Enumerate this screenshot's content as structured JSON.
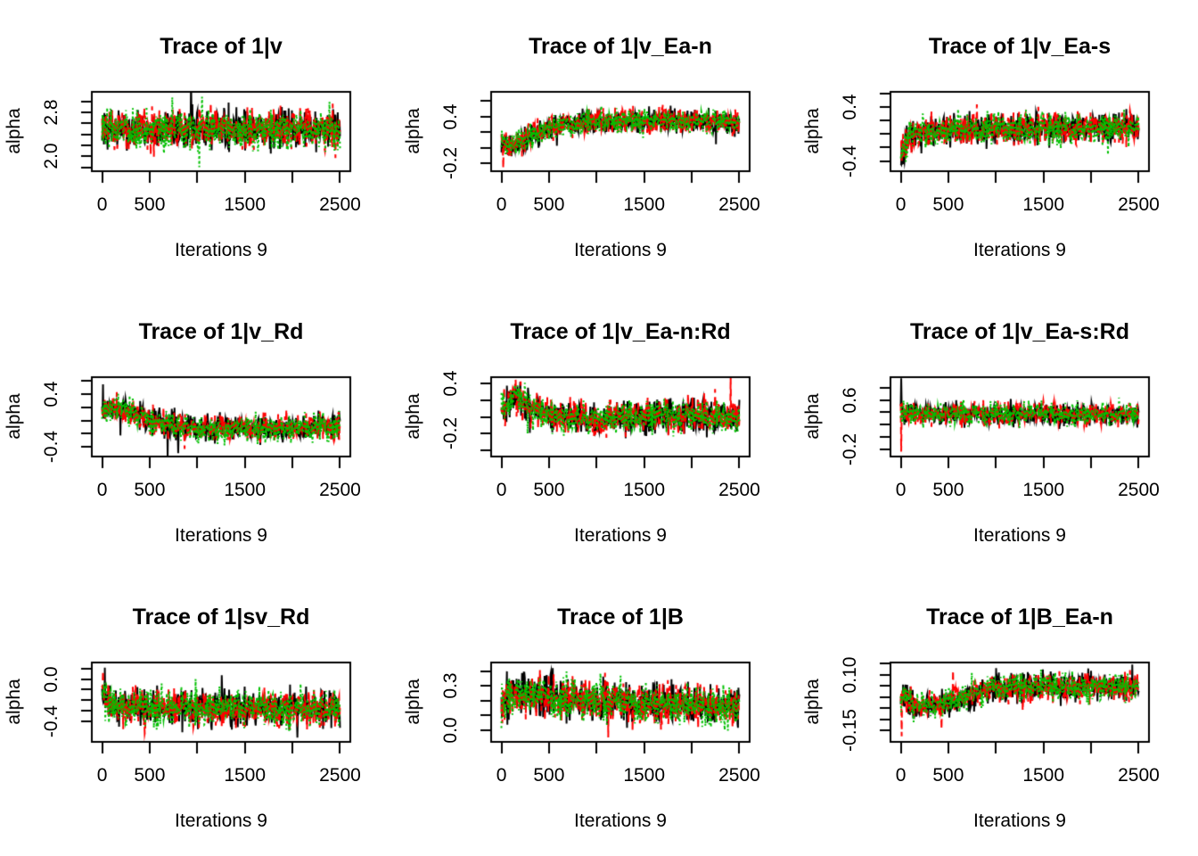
{
  "page": {
    "background": "#ffffff"
  },
  "figure": {
    "rows": 3,
    "columns": 3,
    "kind": "mcmc-trace-plot-grid"
  },
  "colors": {
    "chain1": "#000000",
    "chain2": "#FF0000",
    "chain3": "#00C000",
    "axis": "#000000"
  },
  "chart_data": [
    {
      "type": "line",
      "title": "Trace of 1|v",
      "xlabel": "Iterations 9",
      "ylabel": "alpha",
      "x_range": [
        0,
        2500
      ],
      "xlim": [
        -108,
        2608
      ],
      "ylim": [
        1.73,
        3.17
      ],
      "xtick_values": [
        0,
        500,
        1000,
        1500,
        2000,
        2500
      ],
      "xtick_labels": [
        "0",
        "500",
        "",
        "1500",
        "",
        "2500"
      ],
      "ytick_values": [
        1.8,
        2.0,
        2.2,
        2.4,
        2.6,
        2.8,
        3.0
      ],
      "ytick_labels": [
        "",
        "2.0",
        "",
        "",
        "",
        "2.8",
        ""
      ],
      "grid": false,
      "legend": "none",
      "sigma": 0.18,
      "mean_path": [
        [
          0,
          2.5
        ],
        [
          2500,
          2.5
        ]
      ],
      "spikes": [
        {
          "series": 2,
          "x": 1050,
          "y": 3.08
        },
        {
          "series": 1,
          "x": 2450,
          "y": 1.97
        }
      ],
      "series": [
        {
          "name": "chain-1",
          "color": "#000000",
          "linetype": "solid"
        },
        {
          "name": "chain-2",
          "color": "#FF0000",
          "linetype": "dashed"
        },
        {
          "name": "chain-3",
          "color": "#00C000",
          "linetype": "dotted"
        }
      ]
    },
    {
      "type": "line",
      "title": "Trace of 1|v_Ea-n",
      "xlabel": "Iterations 9",
      "ylabel": "alpha",
      "x_range": [
        0,
        2500
      ],
      "xlim": [
        -108,
        2608
      ],
      "ylim": [
        -0.3,
        0.72
      ],
      "xtick_values": [
        0,
        500,
        1000,
        1500,
        2000,
        2500
      ],
      "xtick_labels": [
        "0",
        "500",
        "",
        "1500",
        "",
        "2500"
      ],
      "ytick_values": [
        -0.2,
        0.0,
        0.2,
        0.4,
        0.6
      ],
      "ytick_labels": [
        "-0.2",
        "",
        "",
        "0.4",
        ""
      ],
      "grid": false,
      "legend": "none",
      "sigma": 0.075,
      "mean_path": [
        [
          0,
          0.08
        ],
        [
          70,
          0.02
        ],
        [
          250,
          0.12
        ],
        [
          550,
          0.27
        ],
        [
          900,
          0.34
        ],
        [
          1400,
          0.35
        ],
        [
          2500,
          0.33
        ]
      ],
      "spikes": [
        {
          "series": 1,
          "x": 18,
          "y": -0.26
        }
      ],
      "series": [
        {
          "name": "chain-1",
          "color": "#000000",
          "linetype": "solid"
        },
        {
          "name": "chain-2",
          "color": "#FF0000",
          "linetype": "dashed"
        },
        {
          "name": "chain-3",
          "color": "#00C000",
          "linetype": "dotted"
        }
      ]
    },
    {
      "type": "line",
      "title": "Trace of 1|v_Ea-s",
      "xlabel": "Iterations 9",
      "ylabel": "alpha",
      "x_range": [
        0,
        2500
      ],
      "xlim": [
        -108,
        2608
      ],
      "ylim": [
        -0.55,
        0.62
      ],
      "xtick_values": [
        0,
        500,
        1000,
        1500,
        2000,
        2500
      ],
      "xtick_labels": [
        "0",
        "500",
        "",
        "1500",
        "",
        "2500"
      ],
      "ytick_values": [
        -0.4,
        -0.2,
        0.0,
        0.2,
        0.4,
        0.6
      ],
      "ytick_labels": [
        "-0.4",
        "",
        "",
        "",
        "0.4",
        ""
      ],
      "grid": false,
      "legend": "none",
      "sigma": 0.115,
      "mean_path": [
        [
          0,
          -0.3
        ],
        [
          70,
          -0.08
        ],
        [
          250,
          0.03
        ],
        [
          600,
          0.07
        ],
        [
          2500,
          0.1
        ]
      ],
      "spikes": [
        {
          "series": 0,
          "x": 5,
          "y": -0.45
        },
        {
          "series": 1,
          "x": 10,
          "y": -0.42
        }
      ],
      "series": [
        {
          "name": "chain-1",
          "color": "#000000",
          "linetype": "solid"
        },
        {
          "name": "chain-2",
          "color": "#FF0000",
          "linetype": "dashed"
        },
        {
          "name": "chain-3",
          "color": "#00C000",
          "linetype": "dotted"
        }
      ]
    },
    {
      "type": "line",
      "title": "Trace of 1|v_Rd",
      "xlabel": "Iterations 9",
      "ylabel": "alpha",
      "x_range": [
        0,
        2500
      ],
      "xlim": [
        -108,
        2608
      ],
      "ylim": [
        -0.55,
        0.66
      ],
      "xtick_values": [
        0,
        500,
        1000,
        1500,
        2000,
        2500
      ],
      "xtick_labels": [
        "0",
        "500",
        "",
        "1500",
        "",
        "2500"
      ],
      "ytick_values": [
        -0.4,
        -0.2,
        0.0,
        0.2,
        0.4,
        0.6
      ],
      "ytick_labels": [
        "-0.4",
        "",
        "",
        "",
        "0.4",
        ""
      ],
      "grid": false,
      "legend": "none",
      "sigma": 0.1,
      "mean_path": [
        [
          0,
          0.15
        ],
        [
          120,
          0.21
        ],
        [
          350,
          0.1
        ],
        [
          600,
          -0.04
        ],
        [
          900,
          -0.12
        ],
        [
          1600,
          -0.13
        ],
        [
          2500,
          -0.1
        ]
      ],
      "spikes": [
        {
          "series": 0,
          "x": 8,
          "y": 0.55
        },
        {
          "series": 0,
          "x": 800,
          "y": -0.5
        }
      ],
      "series": [
        {
          "name": "chain-1",
          "color": "#000000",
          "linetype": "solid"
        },
        {
          "name": "chain-2",
          "color": "#FF0000",
          "linetype": "dashed"
        },
        {
          "name": "chain-3",
          "color": "#00C000",
          "linetype": "dotted"
        }
      ]
    },
    {
      "type": "line",
      "title": "Trace of 1|v_Ea-n:Rd",
      "xlabel": "Iterations 9",
      "ylabel": "alpha",
      "x_range": [
        0,
        2500
      ],
      "xlim": [
        -108,
        2608
      ],
      "ylim": [
        -0.47,
        0.47
      ],
      "xtick_values": [
        0,
        500,
        1000,
        1500,
        2000,
        2500
      ],
      "xtick_labels": [
        "0",
        "500",
        "",
        "1500",
        "",
        "2500"
      ],
      "ytick_values": [
        -0.4,
        -0.2,
        0.0,
        0.2,
        0.4
      ],
      "ytick_labels": [
        "",
        "-0.2",
        "",
        "",
        "0.4"
      ],
      "grid": false,
      "legend": "none",
      "sigma": 0.095,
      "mean_path": [
        [
          0,
          0.06
        ],
        [
          130,
          0.26
        ],
        [
          320,
          0.1
        ],
        [
          600,
          0.0
        ],
        [
          1000,
          -0.03
        ],
        [
          1700,
          0.02
        ],
        [
          2500,
          -0.01
        ]
      ],
      "spikes": [
        {
          "series": 1,
          "x": 200,
          "y": 0.42
        }
      ],
      "series": [
        {
          "name": "chain-1",
          "color": "#000000",
          "linetype": "solid"
        },
        {
          "name": "chain-2",
          "color": "#FF0000",
          "linetype": "dashed"
        },
        {
          "name": "chain-3",
          "color": "#00C000",
          "linetype": "dotted"
        }
      ]
    },
    {
      "type": "line",
      "title": "Trace of 1|v_Ea-s:Rd",
      "xlabel": "Iterations 9",
      "ylabel": "alpha",
      "x_range": [
        0,
        2500
      ],
      "xlim": [
        -108,
        2608
      ],
      "ylim": [
        -0.32,
        0.97
      ],
      "xtick_values": [
        0,
        500,
        1000,
        1500,
        2000,
        2500
      ],
      "xtick_labels": [
        "0",
        "500",
        "",
        "1500",
        "",
        "2500"
      ],
      "ytick_values": [
        -0.2,
        0.0,
        0.2,
        0.4,
        0.6,
        0.8
      ],
      "ytick_labels": [
        "-0.2",
        "",
        "",
        "",
        "0.6",
        ""
      ],
      "grid": false,
      "legend": "none",
      "sigma": 0.09,
      "mean_path": [
        [
          0,
          0.38
        ],
        [
          2500,
          0.36
        ]
      ],
      "spikes": [
        {
          "series": 0,
          "x": 4,
          "y": 0.95
        },
        {
          "series": 1,
          "x": 6,
          "y": -0.24
        }
      ],
      "series": [
        {
          "name": "chain-1",
          "color": "#000000",
          "linetype": "solid"
        },
        {
          "name": "chain-2",
          "color": "#FF0000",
          "linetype": "dashed"
        },
        {
          "name": "chain-3",
          "color": "#00C000",
          "linetype": "dotted"
        }
      ]
    },
    {
      "type": "line",
      "title": "Trace of 1|sv_Rd",
      "xlabel": "Iterations 9",
      "ylabel": "alpha",
      "x_range": [
        0,
        2500
      ],
      "xlim": [
        -108,
        2608
      ],
      "ylim": [
        -0.6,
        0.16
      ],
      "xtick_values": [
        0,
        500,
        1000,
        1500,
        2000,
        2500
      ],
      "xtick_labels": [
        "0",
        "500",
        "",
        "1500",
        "",
        "2500"
      ],
      "ytick_values": [
        -0.4,
        -0.3,
        -0.2,
        -0.1,
        0.0,
        0.1
      ],
      "ytick_labels": [
        "-0.4",
        "",
        "",
        "",
        "0.0",
        ""
      ],
      "grid": false,
      "legend": "none",
      "sigma": 0.085,
      "mean_path": [
        [
          0,
          -0.16
        ],
        [
          120,
          -0.26
        ],
        [
          600,
          -0.27
        ],
        [
          2500,
          -0.28
        ]
      ],
      "spikes": [
        {
          "series": 1,
          "x": 8,
          "y": 0.08
        },
        {
          "series": 0,
          "x": 2050,
          "y": -0.56
        },
        {
          "series": 1,
          "x": 450,
          "y": -0.52
        }
      ],
      "series": [
        {
          "name": "chain-1",
          "color": "#000000",
          "linetype": "solid"
        },
        {
          "name": "chain-2",
          "color": "#FF0000",
          "linetype": "dashed"
        },
        {
          "name": "chain-3",
          "color": "#00C000",
          "linetype": "dotted"
        }
      ]
    },
    {
      "type": "line",
      "title": "Trace of 1|B",
      "xlabel": "Iterations 9",
      "ylabel": "alpha",
      "x_range": [
        0,
        2500
      ],
      "xlim": [
        -108,
        2608
      ],
      "ylim": [
        -0.08,
        0.46
      ],
      "xtick_values": [
        0,
        500,
        1000,
        1500,
        2000,
        2500
      ],
      "xtick_labels": [
        "0",
        "500",
        "",
        "1500",
        "",
        "2500"
      ],
      "ytick_values": [
        0.0,
        0.1,
        0.2,
        0.3,
        0.4
      ],
      "ytick_labels": [
        "0.0",
        "",
        "",
        "0.3",
        ""
      ],
      "grid": false,
      "legend": "none",
      "sigma": 0.068,
      "mean_path": [
        [
          0,
          0.16
        ],
        [
          90,
          0.24
        ],
        [
          700,
          0.22
        ],
        [
          1500,
          0.18
        ],
        [
          2500,
          0.16
        ]
      ],
      "spikes": [
        {
          "series": 0,
          "x": 60,
          "y": 0.4
        },
        {
          "series": 1,
          "x": 1120,
          "y": -0.05
        },
        {
          "series": 1,
          "x": 550,
          "y": 0.38
        }
      ],
      "series": [
        {
          "name": "chain-1",
          "color": "#000000",
          "linetype": "solid"
        },
        {
          "name": "chain-2",
          "color": "#FF0000",
          "linetype": "dashed"
        },
        {
          "name": "chain-3",
          "color": "#00C000",
          "linetype": "dotted"
        }
      ]
    },
    {
      "type": "line",
      "title": "Trace of 1|B_Ea-n",
      "xlabel": "Iterations 9",
      "ylabel": "alpha",
      "x_range": [
        0,
        2500
      ],
      "xlim": [
        -108,
        2608
      ],
      "ylim": [
        -0.2,
        0.155
      ],
      "xtick_values": [
        0,
        500,
        1000,
        1500,
        2000,
        2500
      ],
      "xtick_labels": [
        "0",
        "500",
        "",
        "1500",
        "",
        "2500"
      ],
      "ytick_values": [
        -0.15,
        -0.1,
        -0.05,
        0.0,
        0.05,
        0.1,
        0.15
      ],
      "ytick_labels": [
        "-0.15",
        "",
        "",
        "",
        "",
        "0.10",
        ""
      ],
      "grid": false,
      "legend": "none",
      "sigma": 0.03,
      "mean_path": [
        [
          0,
          0.01
        ],
        [
          120,
          -0.03
        ],
        [
          320,
          -0.045
        ],
        [
          600,
          -0.01
        ],
        [
          900,
          0.035
        ],
        [
          1300,
          0.05
        ],
        [
          2500,
          0.04
        ]
      ],
      "spikes": [
        {
          "series": 1,
          "x": 12,
          "y": -0.175
        },
        {
          "series": 1,
          "x": 550,
          "y": 0.12
        },
        {
          "series": 0,
          "x": 1000,
          "y": 0.13
        }
      ],
      "series": [
        {
          "name": "chain-1",
          "color": "#000000",
          "linetype": "solid"
        },
        {
          "name": "chain-2",
          "color": "#FF0000",
          "linetype": "dashed"
        },
        {
          "name": "chain-3",
          "color": "#00C000",
          "linetype": "dotted"
        }
      ]
    }
  ]
}
